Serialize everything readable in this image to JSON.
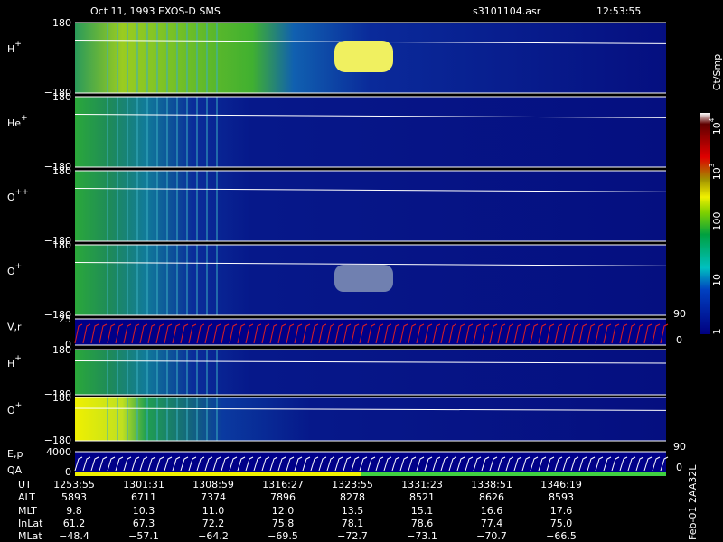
{
  "header": {
    "title": "Oct 11, 1993   EXOS-D SMS",
    "file": "s3101104.asr",
    "time": "12:53:55"
  },
  "panels": [
    {
      "base": "H",
      "sup": "+",
      "top": "180",
      "bottom": "−180"
    },
    {
      "base": "He",
      "sup": "+",
      "top": "180",
      "bottom": "−180"
    },
    {
      "base": "O",
      "sup": "++",
      "top": "180",
      "bottom": "−180"
    },
    {
      "base": "O",
      "sup": "+",
      "top": "180",
      "bottom": "−180"
    },
    {
      "base": "V,r",
      "top": "25",
      "bottom": "0",
      "right_top": "90",
      "right_bottom": "0"
    },
    {
      "base": "H",
      "sup": "+",
      "top": "180",
      "bottom": "−180"
    },
    {
      "base": "O",
      "sup": "+",
      "top": "180",
      "bottom": "−180"
    },
    {
      "base": "E,p",
      "second": "QA",
      "top": "4000",
      "bottom": "0",
      "right_top": "90",
      "right_bottom": "0"
    }
  ],
  "colorbar": {
    "unit": "Ct/Smp",
    "labels": [
      {
        "base": "10",
        "sup": "4"
      },
      {
        "base": "10",
        "sup": "3"
      },
      {
        "base": "100"
      },
      {
        "base": "10"
      },
      {
        "base": "1"
      }
    ]
  },
  "table": {
    "rows": [
      [
        "UT",
        "1253:55",
        "1301:31",
        "1308:59",
        "1316:27",
        "1323:55",
        "1331:23",
        "1338:51",
        "1346:19"
      ],
      [
        "ALT",
        "5893",
        "6711",
        "7374",
        "7896",
        "8278",
        "8521",
        "8626",
        "8593"
      ],
      [
        "MLT",
        "9.8",
        "10.3",
        "11.0",
        "12.0",
        "13.5",
        "15.1",
        "16.6",
        "17.6"
      ],
      [
        "InLat",
        "61.2",
        "67.3",
        "72.2",
        "75.8",
        "78.1",
        "78.6",
        "77.4",
        "75.0"
      ],
      [
        "MLat",
        "−48.4",
        "−57.1",
        "−64.2",
        "−69.5",
        "−72.7",
        "−73.1",
        "−70.7",
        "−66.5"
      ]
    ]
  },
  "footer": "Feb-01 2AA32L"
}
